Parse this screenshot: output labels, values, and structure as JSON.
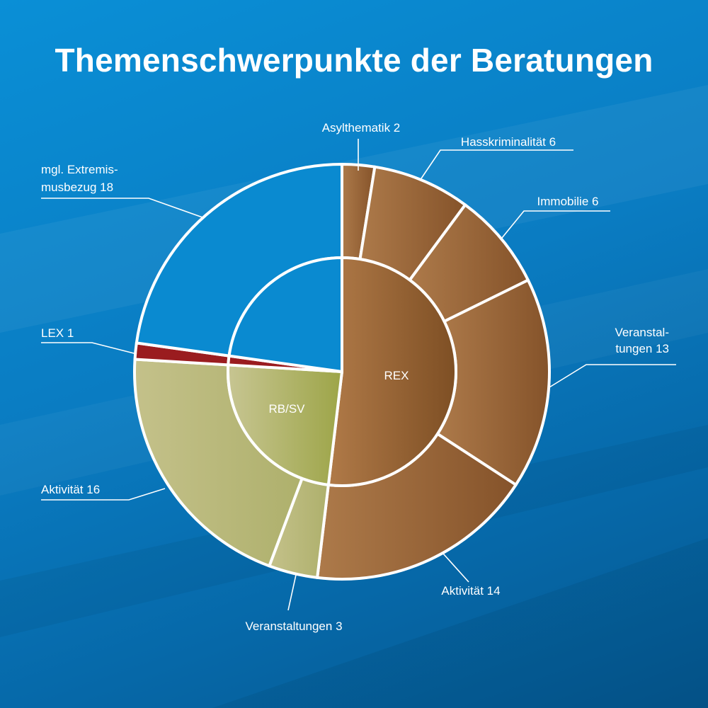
{
  "chart_data": {
    "type": "pie",
    "title": "Themenschwerpunkte der Beratungen",
    "total": 79,
    "inner_ring": [
      {
        "name": "REX",
        "value": 41,
        "color": "#9c6636",
        "label": "REX"
      },
      {
        "name": "RB/SV",
        "value": 19,
        "color": "#b3b56e",
        "label": "RB/SV"
      },
      {
        "name": "LEX",
        "value": 1,
        "color": "#9a1c1f",
        "label": ""
      },
      {
        "name": "mgl. Extremismusbezug",
        "value": 18,
        "color": "#0a8ad0",
        "label": ""
      }
    ],
    "outer_ring": [
      {
        "name": "Asylthematik",
        "value": 2,
        "group": "REX",
        "color": "#a36e3f",
        "label_lines": [
          "Asylthematik 2"
        ]
      },
      {
        "name": "Hasskriminalität",
        "value": 6,
        "group": "REX",
        "color": "#a36e3f",
        "label_lines": [
          "Hasskriminalität 6"
        ]
      },
      {
        "name": "Immobilie",
        "value": 6,
        "group": "REX",
        "color": "#a36e3f",
        "label_lines": [
          "Immobilie 6"
        ]
      },
      {
        "name": "Veranstaltungen",
        "value": 13,
        "group": "REX",
        "color": "#a36e3f",
        "label_lines": [
          "Veranstal-",
          "tungen 13"
        ]
      },
      {
        "name": "Aktivität",
        "value": 14,
        "group": "REX",
        "color": "#a36e3f",
        "label_lines": [
          "Aktivität 14"
        ]
      },
      {
        "name": "Veranstaltungen",
        "value": 3,
        "group": "RB/SV",
        "color": "#c0bf86",
        "label_lines": [
          "Veranstaltungen 3"
        ]
      },
      {
        "name": "Aktivität",
        "value": 16,
        "group": "RB/SV",
        "color": "#c0bf86",
        "label_lines": [
          "Aktivität 16"
        ]
      },
      {
        "name": "LEX",
        "value": 1,
        "group": "LEX",
        "color": "#9a1c1f",
        "label_lines": [
          "LEX 1"
        ]
      },
      {
        "name": "mgl. Extremismusbezug",
        "value": 18,
        "group": "mgl. Extremismusbezug",
        "color": "#0a8ad0",
        "label_lines": [
          "mgl. Extremis-",
          "musbezug 18"
        ]
      }
    ]
  }
}
